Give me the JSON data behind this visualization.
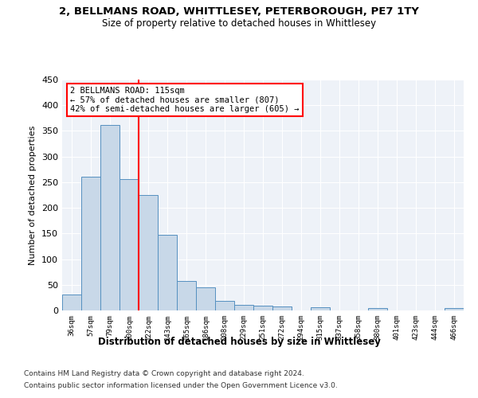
{
  "title1": "2, BELLMANS ROAD, WHITTLESEY, PETERBOROUGH, PE7 1TY",
  "title2": "Size of property relative to detached houses in Whittlesey",
  "xlabel": "Distribution of detached houses by size in Whittlesey",
  "ylabel": "Number of detached properties",
  "footnote1": "Contains HM Land Registry data © Crown copyright and database right 2024.",
  "footnote2": "Contains public sector information licensed under the Open Government Licence v3.0.",
  "annotation_title": "2 BELLMANS ROAD: 115sqm",
  "annotation_line1": "← 57% of detached houses are smaller (807)",
  "annotation_line2": "42% of semi-detached houses are larger (605) →",
  "bar_color": "#c8d8e8",
  "bar_edge_color": "#5590c0",
  "vline_color": "red",
  "annotation_box_color": "red",
  "background_color": "#eef2f8",
  "categories": [
    "36sqm",
    "57sqm",
    "79sqm",
    "100sqm",
    "122sqm",
    "143sqm",
    "165sqm",
    "186sqm",
    "208sqm",
    "229sqm",
    "251sqm",
    "272sqm",
    "294sqm",
    "315sqm",
    "337sqm",
    "358sqm",
    "380sqm",
    "401sqm",
    "423sqm",
    "444sqm",
    "466sqm"
  ],
  "values": [
    31,
    260,
    362,
    256,
    225,
    148,
    57,
    45,
    18,
    11,
    10,
    7,
    0,
    6,
    0,
    0,
    4,
    0,
    0,
    0,
    4
  ],
  "ylim": [
    0,
    450
  ],
  "yticks": [
    0,
    50,
    100,
    150,
    200,
    250,
    300,
    350,
    400,
    450
  ],
  "vline_x_index": 4,
  "figsize": [
    6.0,
    5.0
  ],
  "dpi": 100
}
